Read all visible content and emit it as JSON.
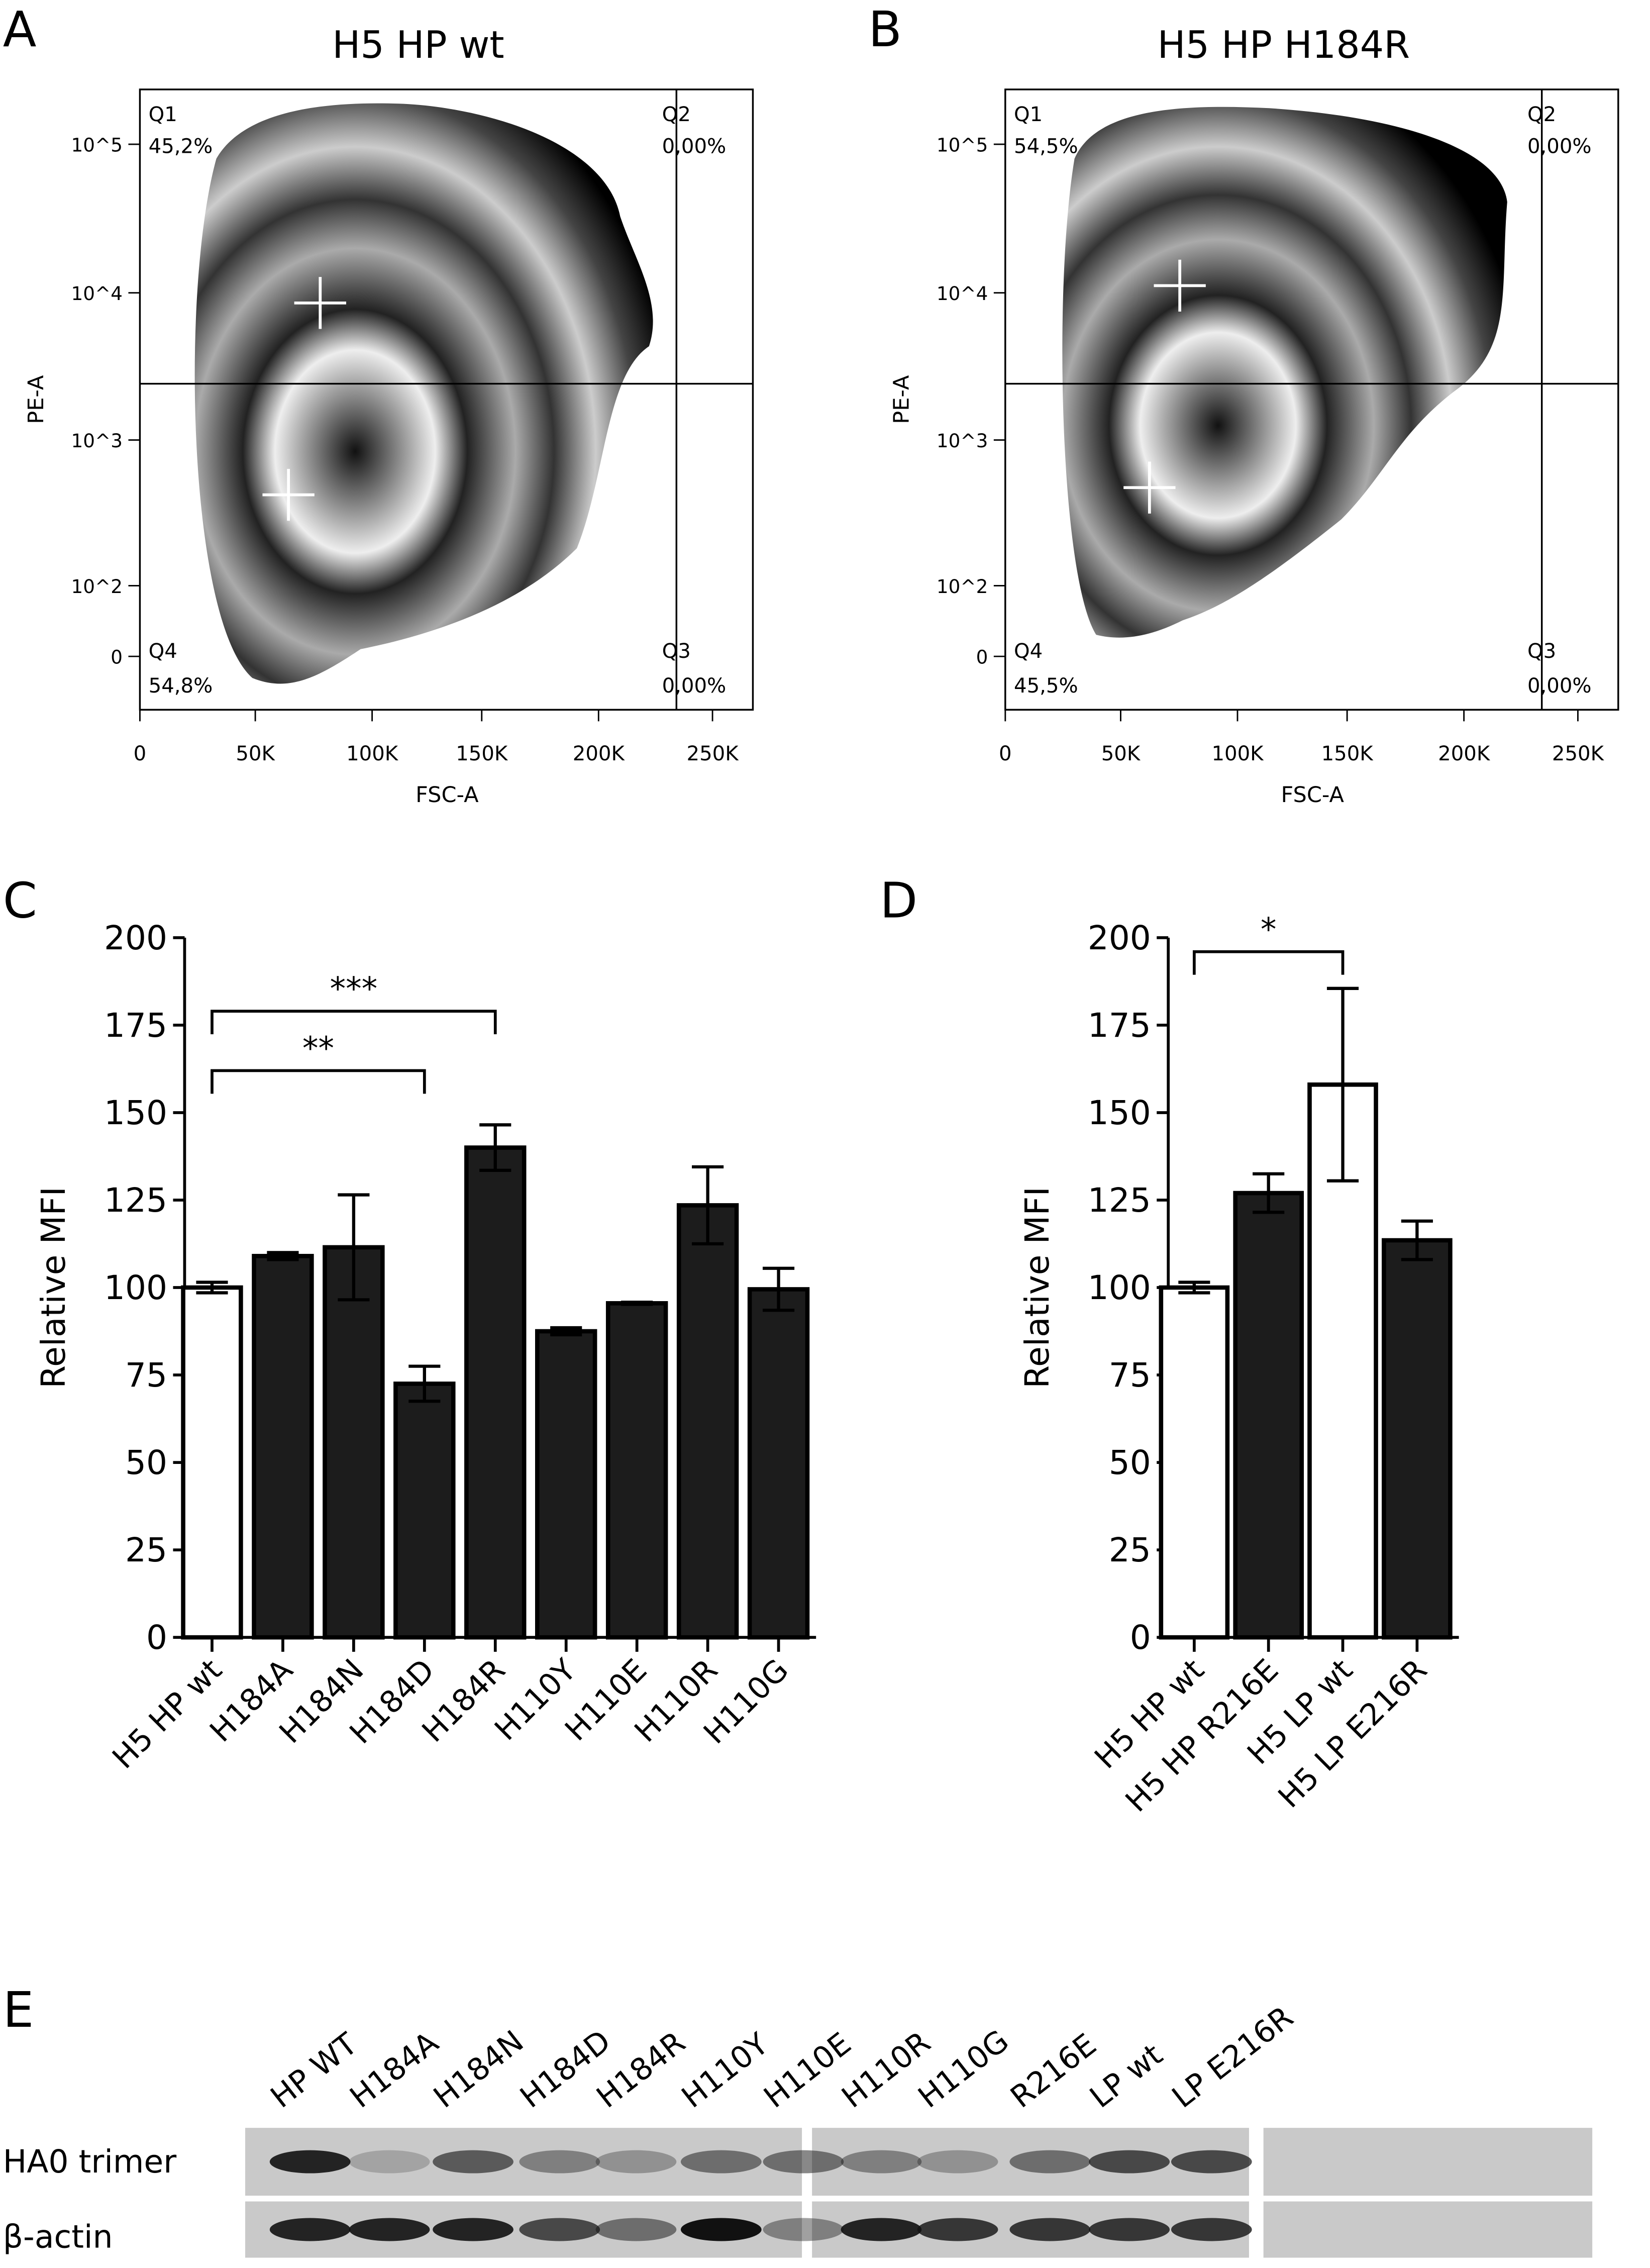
{
  "panels": {
    "a": "A",
    "b": "B",
    "c": "C",
    "d": "D",
    "e": "E"
  },
  "flow": [
    {
      "title": "H5 HP wt",
      "xlabel": "FSC-A",
      "ylabel": "PE-A",
      "xticks": [
        "0",
        "50K",
        "100K",
        "150K",
        "200K",
        "250K"
      ],
      "yticks": [
        "10^5",
        "10^4",
        "10^3",
        "10^2",
        "0"
      ],
      "quadrants": {
        "q1": "Q1",
        "q1v": "45,2%",
        "q2": "Q2",
        "q2v": "0,00%",
        "q3": "Q3",
        "q3v": "0,00%",
        "q4": "Q4",
        "q4v": "54,8%"
      }
    },
    {
      "title": "H5 HP H184R",
      "xlabel": "FSC-A",
      "ylabel": "PE-A",
      "xticks": [
        "0",
        "50K",
        "100K",
        "150K",
        "200K",
        "250K"
      ],
      "yticks": [
        "10^5",
        "10^4",
        "10^3",
        "10^2",
        "0"
      ],
      "quadrants": {
        "q1": "Q1",
        "q1v": "54,5%",
        "q2": "Q2",
        "q2v": "0,00%",
        "q3": "Q3",
        "q3v": "0,00%",
        "q4": "Q4",
        "q4v": "45,5%"
      }
    }
  ],
  "chart_data": [
    {
      "type": "bar",
      "ylabel": "Relative MFI",
      "ylim": [
        0,
        200
      ],
      "yticks": [
        0,
        25,
        50,
        75,
        100,
        125,
        150,
        175,
        200
      ],
      "categories": [
        "H5 HP wt",
        "H184A",
        "H184N",
        "H184D",
        "H184R",
        "H110Y",
        "H110E",
        "H110R",
        "H110G"
      ],
      "values": [
        100,
        109,
        111.5,
        72.5,
        140,
        87.5,
        95.5,
        123.5,
        99.5
      ],
      "errors": [
        1.5,
        1,
        15,
        5,
        6.5,
        1,
        0.3,
        11,
        6
      ],
      "fills": [
        "#ffffff",
        "#1c1c1c",
        "#1c1c1c",
        "#1c1c1c",
        "#1c1c1c",
        "#1c1c1c",
        "#1c1c1c",
        "#1c1c1c",
        "#1c1c1c"
      ],
      "significance": [
        {
          "from": 0,
          "to": 4,
          "label": "***",
          "y": 179
        },
        {
          "from": 0,
          "to": 3,
          "label": "**",
          "y": 162
        }
      ]
    },
    {
      "type": "bar",
      "ylabel": "Relative MFI",
      "ylim": [
        0,
        200
      ],
      "yticks": [
        0,
        25,
        50,
        75,
        100,
        125,
        150,
        175,
        200
      ],
      "categories": [
        "H5 HP wt",
        "H5 HP R216E",
        "H5 LP wt",
        "H5 LP E216R"
      ],
      "values": [
        100,
        127,
        158,
        113.5
      ],
      "errors": [
        1.5,
        5.5,
        27.5,
        5.5
      ],
      "fills": [
        "#ffffff",
        "#1c1c1c",
        "#ffffff",
        "#1c1c1c"
      ],
      "significance": [
        {
          "from": 0,
          "to": 2,
          "label": "*",
          "y": 196
        }
      ]
    }
  ],
  "blot": {
    "lanes": [
      "HP WT",
      "H184A",
      "H184N",
      "H184D",
      "H184R",
      "H110Y",
      "H110E",
      "H110R",
      "H110G",
      "R216E",
      "LP wt",
      "LP E216R"
    ],
    "rows": [
      "HA0 trimer",
      "β-actin"
    ]
  }
}
